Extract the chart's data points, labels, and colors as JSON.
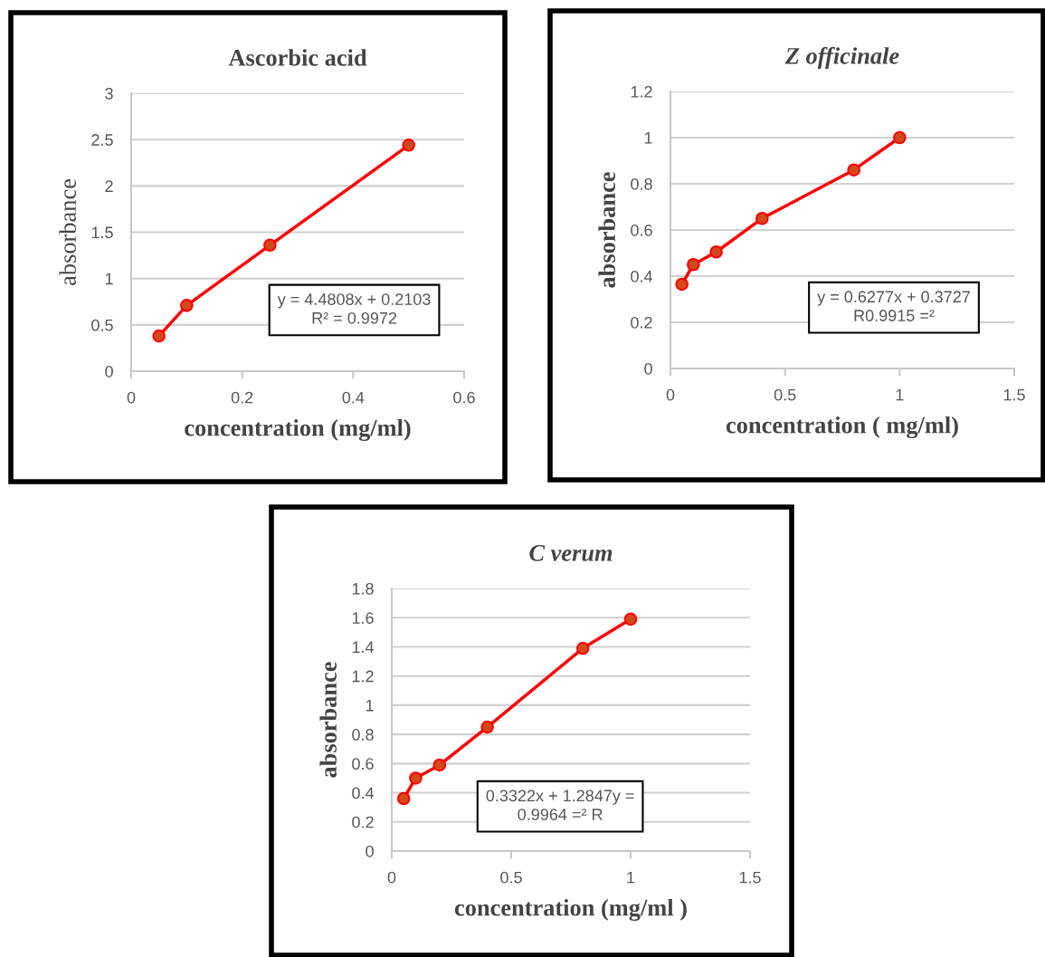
{
  "chart_data": [
    {
      "type": "line",
      "title": "Ascorbic acid",
      "xlabel": "concentration (mg/ml)",
      "ylabel": "absorbance",
      "x": [
        0.05,
        0.1,
        0.25,
        0.5
      ],
      "series": [
        {
          "color": "#ff0000",
          "values": [
            0.38,
            0.71,
            1.36,
            2.44
          ]
        }
      ],
      "xlim": [
        0,
        0.6
      ],
      "xticks": [
        0,
        0.2,
        0.4,
        0.6
      ],
      "ylim": [
        0,
        3
      ],
      "yticks": [
        0,
        0.5,
        1,
        1.5,
        2,
        2.5,
        3
      ],
      "grid": "y",
      "marker": "circle",
      "line_style": "solid",
      "annotations": [
        "y = 4.4808x + 0.2103\nR² = 0.9972"
      ]
    },
    {
      "type": "line",
      "title": "Z officinale",
      "xlabel": "concentration ( mg/ml)",
      "ylabel": "absorbance",
      "x": [
        0.05,
        0.1,
        0.2,
        0.4,
        0.8,
        1
      ],
      "series": [
        {
          "color": "#ff0000",
          "values": [
            0.365,
            0.45,
            0.505,
            0.65,
            0.86,
            1.0
          ]
        }
      ],
      "xlim": [
        0,
        1.5
      ],
      "xticks": [
        0,
        0.5,
        1,
        1.5
      ],
      "ylim": [
        0,
        1.2
      ],
      "yticks": [
        0,
        0.2,
        0.4,
        0.6,
        0.8,
        1,
        1.2
      ],
      "grid": "y",
      "marker": "circle",
      "line_style": "solid",
      "annotations": [
        "y = 0.6277x + 0.3727\nR0.9915 =²"
      ]
    },
    {
      "type": "line",
      "title": "C verum",
      "xlabel": "concentration (mg/ml )",
      "ylabel": "absorbance",
      "x": [
        0.05,
        0.1,
        0.2,
        0.4,
        0.8,
        1
      ],
      "series": [
        {
          "color": "#ff0000",
          "values": [
            0.36,
            0.5,
            0.59,
            0.85,
            1.39,
            1.59
          ]
        }
      ],
      "xlim": [
        0,
        1.5
      ],
      "xticks": [
        0,
        0.5,
        1,
        1.5
      ],
      "ylim": [
        0,
        1.8
      ],
      "yticks": [
        0,
        0.2,
        0.4,
        0.6,
        0.8,
        1,
        1.2,
        1.4,
        1.6,
        1.8
      ],
      "grid": "y",
      "marker": "circle",
      "line_style": "solid",
      "annotations": [
        "0.3322x + 1.2847y =\n0.9964 =² R"
      ]
    }
  ]
}
